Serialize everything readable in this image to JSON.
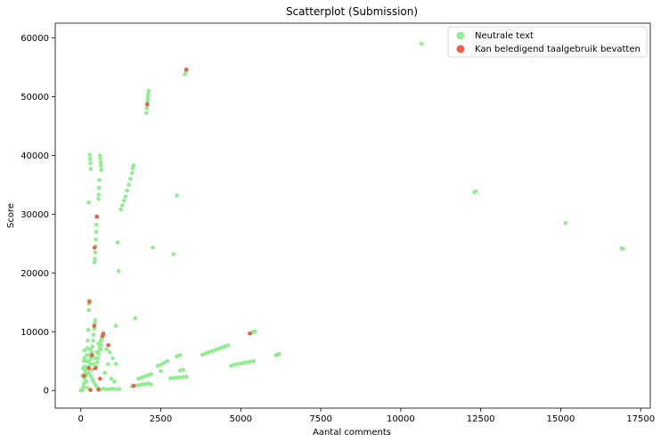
{
  "chart_data": {
    "type": "scatter",
    "title": "Scatterplot (Submission)",
    "xlabel": "Aantal comments",
    "ylabel": "Score",
    "xlim": [
      -800,
      17800
    ],
    "ylim": [
      -3000,
      62500
    ],
    "xticks": [
      "0",
      "2500",
      "5000",
      "7500",
      "10000",
      "12500",
      "15000",
      "17500"
    ],
    "xtick_values": [
      0,
      2500,
      5000,
      7500,
      10000,
      12500,
      15000,
      17500
    ],
    "yticks": [
      "0",
      "10000",
      "20000",
      "30000",
      "40000",
      "50000",
      "60000"
    ],
    "ytick_values": [
      0,
      10000,
      20000,
      30000,
      40000,
      50000,
      60000
    ],
    "grid": false,
    "legend_position": "top-right",
    "series": [
      {
        "name": "Neutrale text",
        "color": "#90ee90",
        "points": [
          [
            10650,
            59000
          ],
          [
            12300,
            33700
          ],
          [
            12350,
            33900
          ],
          [
            15150,
            28500
          ],
          [
            16900,
            24200
          ],
          [
            16950,
            24100
          ],
          [
            2050,
            47200
          ],
          [
            2060,
            48000
          ],
          [
            2070,
            48500
          ],
          [
            2080,
            49000
          ],
          [
            2090,
            49500
          ],
          [
            2100,
            50000
          ],
          [
            2110,
            50500
          ],
          [
            2120,
            51000
          ],
          [
            3250,
            53800
          ],
          [
            3280,
            54200
          ],
          [
            1250,
            30800
          ],
          [
            1300,
            31500
          ],
          [
            1350,
            32300
          ],
          [
            1400,
            33000
          ],
          [
            1450,
            34000
          ],
          [
            1500,
            35000
          ],
          [
            1550,
            36000
          ],
          [
            1600,
            37000
          ],
          [
            1620,
            37800
          ],
          [
            1650,
            38300
          ],
          [
            280,
            40100
          ],
          [
            290,
            39400
          ],
          [
            300,
            38700
          ],
          [
            310,
            37700
          ],
          [
            250,
            32000
          ],
          [
            600,
            40000
          ],
          [
            610,
            39500
          ],
          [
            620,
            38800
          ],
          [
            630,
            38200
          ],
          [
            640,
            37500
          ],
          [
            580,
            35800
          ],
          [
            570,
            34500
          ],
          [
            560,
            33300
          ],
          [
            550,
            32600
          ],
          [
            500,
            29500
          ],
          [
            490,
            28200
          ],
          [
            480,
            27000
          ],
          [
            470,
            25700
          ],
          [
            460,
            24500
          ],
          [
            450,
            23500
          ],
          [
            440,
            22400
          ],
          [
            430,
            21800
          ],
          [
            1150,
            25200
          ],
          [
            1180,
            20300
          ],
          [
            2250,
            24300
          ],
          [
            2900,
            23200
          ],
          [
            3000,
            33200
          ],
          [
            1700,
            12300
          ],
          [
            1100,
            11000
          ],
          [
            270,
            15300
          ],
          [
            260,
            14800
          ],
          [
            250,
            13700
          ],
          [
            230,
            10300
          ],
          [
            220,
            8500
          ],
          [
            450,
            12000
          ],
          [
            440,
            11500
          ],
          [
            420,
            10500
          ],
          [
            400,
            9500
          ],
          [
            380,
            8500
          ],
          [
            360,
            7500
          ],
          [
            340,
            6500
          ],
          [
            320,
            5500
          ],
          [
            300,
            4500
          ],
          [
            650,
            9000
          ],
          [
            630,
            8500
          ],
          [
            610,
            8000
          ],
          [
            590,
            7500
          ],
          [
            570,
            6800
          ],
          [
            550,
            6200
          ],
          [
            530,
            5500
          ],
          [
            510,
            4800
          ],
          [
            490,
            4000
          ],
          [
            800,
            7000
          ],
          [
            900,
            6500
          ],
          [
            1000,
            5500
          ],
          [
            1100,
            4500
          ],
          [
            200,
            7200
          ],
          [
            180,
            6000
          ],
          [
            160,
            5000
          ],
          [
            150,
            4000
          ],
          [
            140,
            3000
          ],
          [
            120,
            2000
          ],
          [
            100,
            1200
          ],
          [
            80,
            600
          ],
          [
            60,
            200
          ],
          [
            40,
            50
          ],
          [
            20,
            0
          ],
          [
            0,
            0
          ],
          [
            10,
            100
          ],
          [
            250,
            3000
          ],
          [
            300,
            2500
          ],
          [
            350,
            2000
          ],
          [
            400,
            1500
          ],
          [
            450,
            1000
          ],
          [
            500,
            600
          ],
          [
            550,
            300
          ],
          [
            600,
            150
          ],
          [
            700,
            300
          ],
          [
            800,
            200
          ],
          [
            900,
            250
          ],
          [
            1000,
            300
          ],
          [
            1100,
            200
          ],
          [
            1200,
            250
          ],
          [
            1600,
            700
          ],
          [
            1700,
            800
          ],
          [
            1800,
            900
          ],
          [
            1900,
            1000
          ],
          [
            2000,
            1100
          ],
          [
            2100,
            1200
          ],
          [
            2200,
            1000
          ],
          [
            1800,
            2000
          ],
          [
            1900,
            2200
          ],
          [
            2000,
            2400
          ],
          [
            2100,
            2600
          ],
          [
            2200,
            2800
          ],
          [
            2400,
            4200
          ],
          [
            2500,
            4400
          ],
          [
            2600,
            4700
          ],
          [
            2700,
            5000
          ],
          [
            2500,
            3300
          ],
          [
            3100,
            3400
          ],
          [
            3200,
            3500
          ],
          [
            2800,
            2100
          ],
          [
            2900,
            2150
          ],
          [
            3000,
            2200
          ],
          [
            3100,
            2250
          ],
          [
            3200,
            2300
          ],
          [
            3300,
            2350
          ],
          [
            3000,
            5800
          ],
          [
            3100,
            6000
          ],
          [
            3800,
            6100
          ],
          [
            3900,
            6300
          ],
          [
            4000,
            6500
          ],
          [
            4100,
            6700
          ],
          [
            4200,
            6900
          ],
          [
            4300,
            7100
          ],
          [
            4400,
            7300
          ],
          [
            4500,
            7500
          ],
          [
            4600,
            7700
          ],
          [
            4700,
            4200
          ],
          [
            4800,
            4400
          ],
          [
            4900,
            4500
          ],
          [
            5000,
            4600
          ],
          [
            5100,
            4700
          ],
          [
            5200,
            4800
          ],
          [
            5300,
            4900
          ],
          [
            5400,
            5000
          ],
          [
            5350,
            9800
          ],
          [
            5400,
            10000
          ],
          [
            5450,
            10100
          ],
          [
            6100,
            6000
          ],
          [
            6150,
            6100
          ],
          [
            6200,
            6200
          ],
          [
            100,
            4000
          ],
          [
            120,
            5500
          ],
          [
            140,
            3500
          ],
          [
            160,
            2500
          ],
          [
            180,
            1500
          ],
          [
            200,
            500
          ],
          [
            50,
            2500
          ],
          [
            70,
            3800
          ],
          [
            90,
            5000
          ],
          [
            110,
            6800
          ],
          [
            350,
            3500
          ],
          [
            400,
            4500
          ],
          [
            450,
            5500
          ],
          [
            500,
            6500
          ],
          [
            550,
            8000
          ],
          [
            300,
            7000
          ],
          [
            280,
            6000
          ],
          [
            260,
            5000
          ],
          [
            240,
            4000
          ],
          [
            700,
            9800
          ],
          [
            680,
            9200
          ],
          [
            660,
            8700
          ],
          [
            640,
            7800
          ],
          [
            620,
            7000
          ],
          [
            750,
            3000
          ],
          [
            850,
            4500
          ],
          [
            950,
            2000
          ],
          [
            1050,
            1500
          ]
        ]
      },
      {
        "name": "Kan beledigend taalgebruik bevatten",
        "color": "#ef5e48",
        "points": [
          [
            3300,
            54600
          ],
          [
            2080,
            48700
          ],
          [
            500,
            29600
          ],
          [
            430,
            24300
          ],
          [
            270,
            15100
          ],
          [
            420,
            11000
          ],
          [
            700,
            9600
          ],
          [
            680,
            9300
          ],
          [
            860,
            7700
          ],
          [
            5280,
            9700
          ],
          [
            1650,
            800
          ],
          [
            550,
            150
          ],
          [
            300,
            100
          ],
          [
            450,
            3800
          ],
          [
            250,
            3800
          ],
          [
            100,
            2500
          ],
          [
            600,
            2000
          ],
          [
            350,
            6000
          ]
        ]
      }
    ]
  }
}
